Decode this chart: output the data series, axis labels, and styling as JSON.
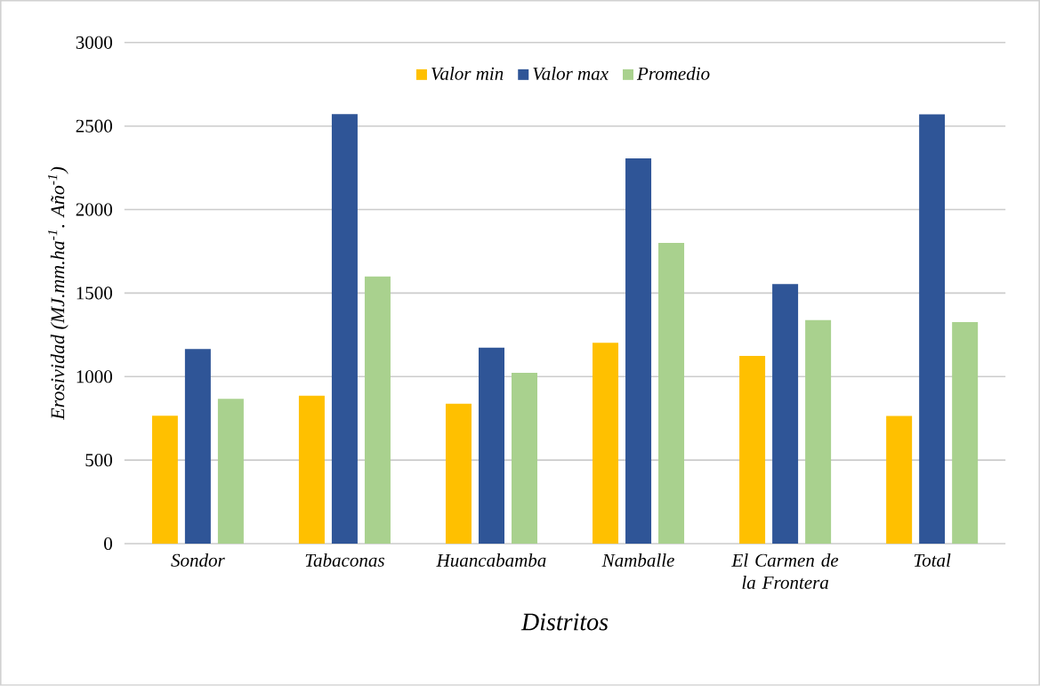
{
  "chart_data": {
    "type": "bar",
    "xlabel": "Distritos",
    "ylabel": "Erosividad (MJ.mm.ha$^{-1}$. Año$^{-1}$)",
    "categories": [
      "Sondor",
      "Tabaconas",
      "Huancabamba",
      "Namballe",
      "El Carmen de la Frontera",
      "Total"
    ],
    "series": [
      {
        "name": "Valor min",
        "color": "#ffc000",
        "values": [
          766,
          886,
          838,
          1203,
          1124,
          764
        ]
      },
      {
        "name": "Valor max",
        "color": "#2f5597",
        "values": [
          1165,
          2572,
          1173,
          2306,
          1554,
          2570
        ]
      },
      {
        "name": "Promedio",
        "color": "#a9d18e",
        "values": [
          867,
          1599,
          1023,
          1800,
          1338,
          1326
        ]
      }
    ],
    "ylim": [
      0,
      3000
    ],
    "yticks": [
      0,
      500,
      1000,
      1500,
      2000,
      2500,
      3000
    ],
    "grid": "y",
    "legend": "top"
  }
}
